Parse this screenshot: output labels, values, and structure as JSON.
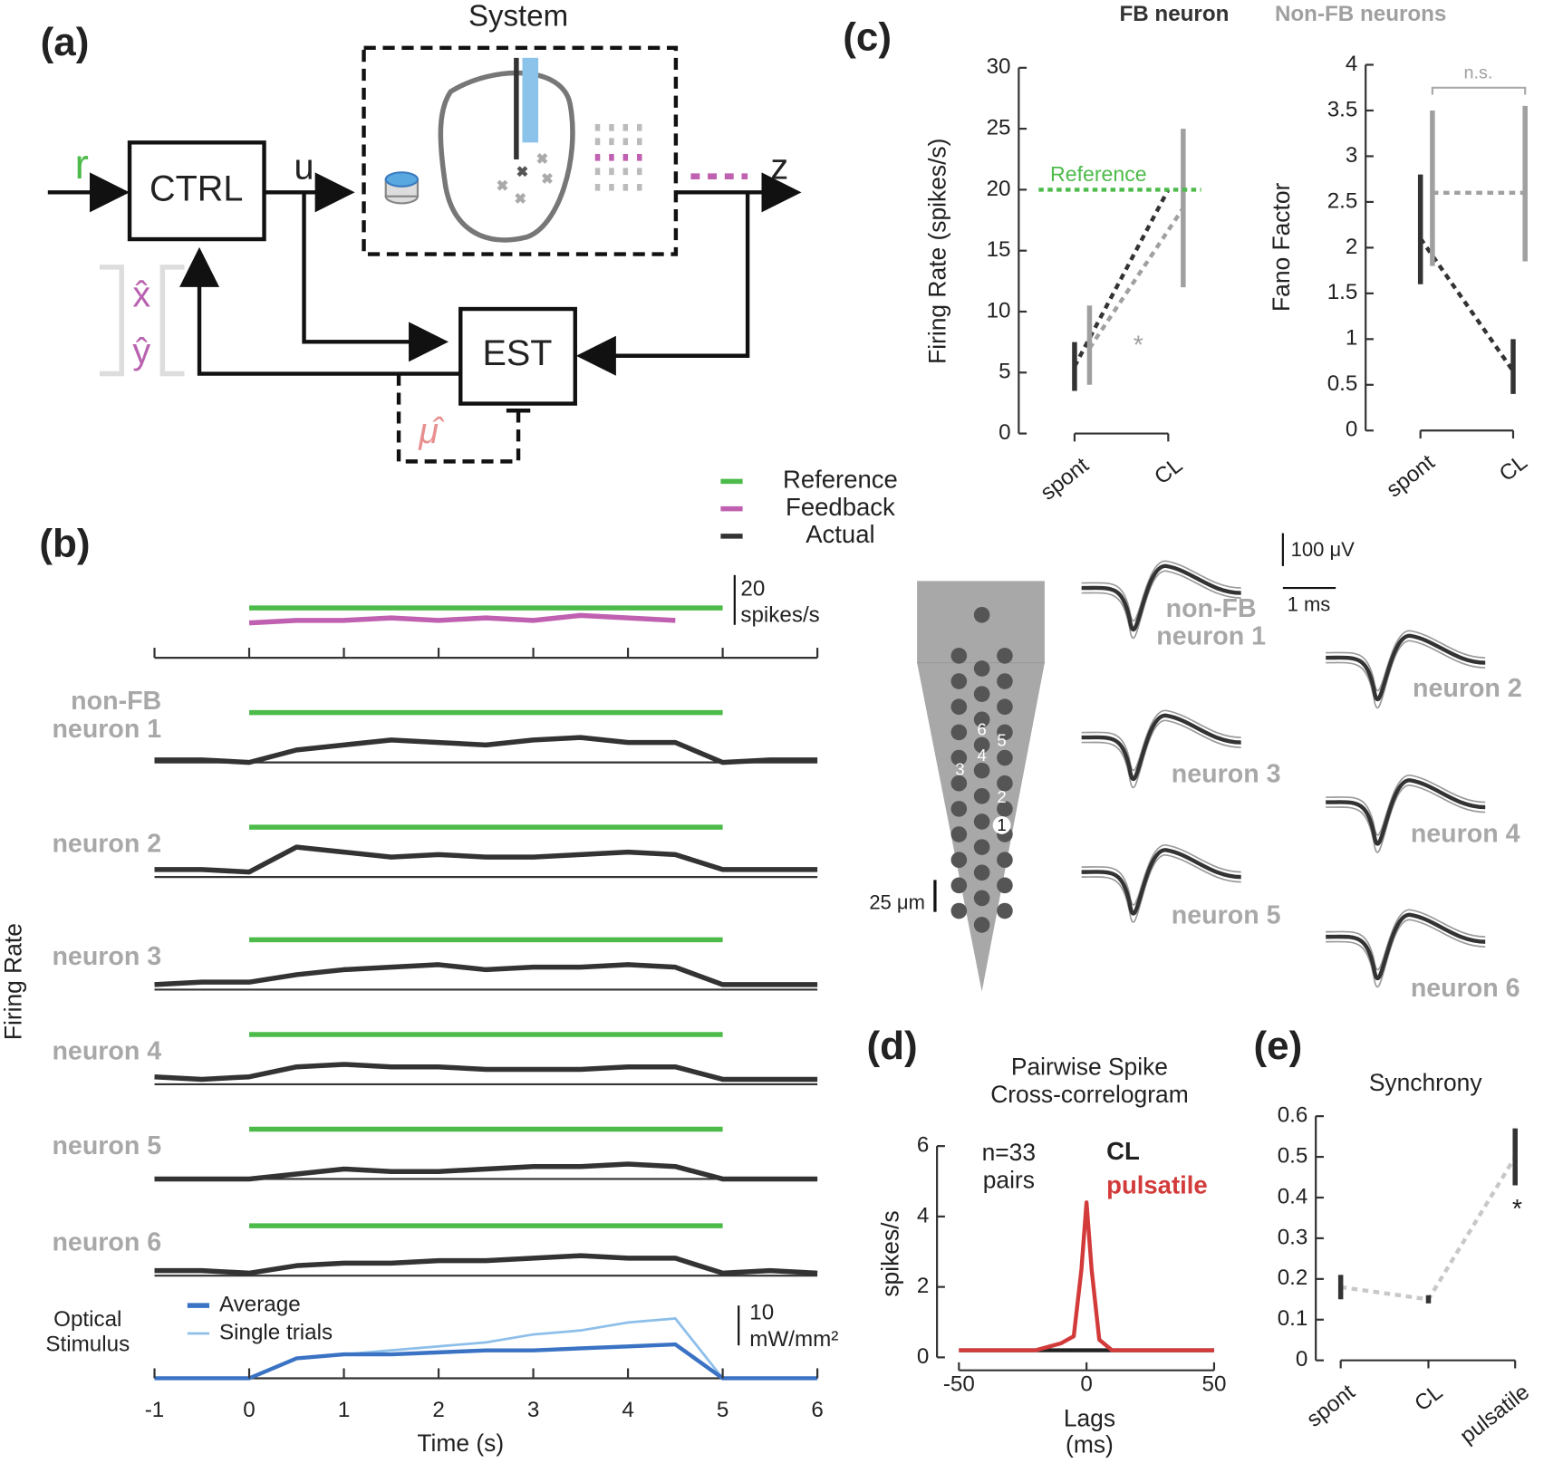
{
  "panel_a": {
    "label": "(a)",
    "title": "System",
    "r": "r",
    "ctrl": "CTRL",
    "u": "u",
    "z": "z",
    "est": "EST",
    "x_hat": "x̂",
    "y_hat": "ŷ",
    "mu_hat": "μ̂"
  },
  "probe": {
    "scale": "25 μm",
    "sites": [
      "1",
      "2",
      "3",
      "4",
      "5",
      "6"
    ],
    "amplitude_scale": "100 μV",
    "time_scale": "1 ms",
    "neurons": [
      [
        "non-FB",
        "neuron 1"
      ],
      [
        "neuron 2"
      ],
      [
        "neuron 3"
      ],
      [
        "neuron 4"
      ],
      [
        "neuron 5"
      ],
      [
        "neuron 6"
      ]
    ]
  },
  "chart_data": [
    {
      "type": "line",
      "label": "(b)",
      "xlabel": "Time (s)",
      "ylabel": "Firing Rate",
      "x": [
        -1,
        -0.5,
        0,
        0.5,
        1,
        1.5,
        2,
        2.5,
        3,
        3.5,
        4,
        4.5,
        5,
        5.5,
        6
      ],
      "xlim": [
        -1,
        6
      ],
      "xticks": [
        -1,
        0,
        1,
        2,
        3,
        4,
        5,
        6
      ],
      "legend": [
        {
          "name": "Reference",
          "color": "#4dbb4a"
        },
        {
          "name": "Feedback",
          "color": "#c060b0"
        },
        {
          "name": "Actual",
          "color": "#333333"
        }
      ],
      "reference": 20,
      "reference_span": [
        0,
        5
      ],
      "scale_bar": {
        "value": 20,
        "label": "20",
        "unit": "spikes/s"
      },
      "rows": [
        {
          "feedback": [
            null,
            null,
            14,
            15,
            15,
            16,
            15,
            16,
            15,
            17,
            16,
            15,
            null,
            null,
            null
          ]
        },
        {
          "label": [
            "non-FB",
            "neuron 1"
          ],
          "actual": [
            1,
            1,
            0,
            5,
            7,
            9,
            8,
            7,
            9,
            10,
            8,
            8,
            0,
            1,
            1
          ]
        },
        {
          "label": [
            "neuron 2"
          ],
          "actual": [
            3,
            3,
            2,
            12,
            10,
            8,
            9,
            8,
            8,
            9,
            10,
            9,
            3,
            3,
            3
          ]
        },
        {
          "label": [
            "neuron 3"
          ],
          "actual": [
            2,
            3,
            3,
            6,
            8,
            9,
            10,
            8,
            9,
            9,
            10,
            9,
            2,
            2,
            2
          ]
        },
        {
          "label": [
            "neuron 4"
          ],
          "actual": [
            3,
            2,
            3,
            7,
            8,
            7,
            7,
            6,
            6,
            6,
            7,
            7,
            2,
            2,
            2
          ]
        },
        {
          "label": [
            "neuron 5"
          ],
          "actual": [
            0,
            0,
            0,
            2,
            4,
            3,
            3,
            4,
            5,
            5,
            6,
            5,
            0,
            0,
            0
          ]
        },
        {
          "label": [
            "neuron 6"
          ],
          "actual": [
            2,
            2,
            1,
            4,
            5,
            5,
            6,
            6,
            7,
            8,
            7,
            7,
            1,
            2,
            1
          ]
        }
      ],
      "stimulus": {
        "label": [
          "Optical",
          "Stimulus"
        ],
        "scale_bar": {
          "value": 10,
          "label": "10",
          "unit": "mW/mm²"
        },
        "series": [
          {
            "name": "Average",
            "color": "#3a72c4",
            "values": [
              0,
              0,
              0,
              5,
              6,
              6,
              6.5,
              7,
              7,
              7.5,
              8,
              8.5,
              0,
              0,
              0
            ]
          },
          {
            "name": "Single trials",
            "color": "#8dbfea",
            "values": [
              0,
              0,
              0,
              5,
              6,
              7,
              8,
              9,
              11,
              12,
              14,
              15,
              0,
              0,
              0
            ]
          }
        ]
      }
    },
    {
      "type": "errorbar",
      "label": "(c)",
      "ylabel": "Firing Rate (spikes/s)",
      "categories": [
        "spont",
        "CL"
      ],
      "ylim": [
        0,
        30
      ],
      "yticks": [
        0,
        5,
        10,
        15,
        20,
        25,
        30
      ],
      "reference": 20,
      "reference_label": "Reference",
      "reference_color": "#4dbb4a",
      "annotation": "*",
      "series": [
        {
          "name": "FB neuron",
          "color": "#333333",
          "values": [
            5.5,
            20
          ],
          "lower": [
            3.5,
            null
          ],
          "upper": [
            7.5,
            null
          ]
        },
        {
          "name": "Non-FB neurons",
          "color": "#a0a0a0",
          "values": [
            7,
            18.5
          ],
          "lower": [
            4,
            12
          ],
          "upper": [
            10.5,
            25
          ]
        }
      ]
    },
    {
      "type": "errorbar",
      "ylabel": "Fano Factor",
      "categories": [
        "spont",
        "CL"
      ],
      "ylim": [
        0,
        4
      ],
      "yticks": [
        0,
        0.5,
        1,
        1.5,
        2,
        2.5,
        3,
        3.5,
        4
      ],
      "annotation": "n.s.",
      "series": [
        {
          "color": "#333333",
          "values": [
            2.1,
            0.65
          ],
          "lower": [
            1.6,
            0.4
          ],
          "upper": [
            2.8,
            1.0
          ]
        },
        {
          "color": "#a0a0a0",
          "values": [
            2.6,
            2.6
          ],
          "lower": [
            1.8,
            1.85
          ],
          "upper": [
            3.5,
            3.55
          ]
        }
      ]
    },
    {
      "type": "line",
      "label": "(d)",
      "title_lines": [
        "Pairwise Spike",
        "Cross-correlogram"
      ],
      "xlabel_lines": [
        "Lags",
        "(ms)"
      ],
      "ylabel": "spikes/s",
      "annotation_lines": [
        "n=33",
        "pairs"
      ],
      "x": [
        -50,
        -40,
        -30,
        -20,
        -10,
        -5,
        -2,
        0,
        2,
        5,
        10,
        20,
        30,
        40,
        50
      ],
      "xlim": [
        -50,
        50
      ],
      "xticks": [
        -50,
        0,
        50
      ],
      "ylim": [
        0,
        6
      ],
      "yticks": [
        0,
        2,
        4,
        6
      ],
      "series": [
        {
          "name": "CL",
          "color": "#222222",
          "values": [
            0.2,
            0.2,
            0.2,
            0.2,
            0.2,
            0.2,
            0.2,
            0.2,
            0.2,
            0.2,
            0.2,
            0.2,
            0.2,
            0.2,
            0.2
          ]
        },
        {
          "name": "pulsatile",
          "color": "#d33a3a",
          "values": [
            0.2,
            0.2,
            0.2,
            0.2,
            0.4,
            0.6,
            2.5,
            4.4,
            2.5,
            0.5,
            0.2,
            0.2,
            0.2,
            0.2,
            0.2
          ]
        }
      ]
    },
    {
      "type": "errorbar",
      "label": "(e)",
      "title": "Synchrony",
      "categories": [
        "spont",
        "CL",
        "pulsatile"
      ],
      "ylim": [
        0,
        0.6
      ],
      "yticks": [
        0,
        0.1,
        0.2,
        0.3,
        0.4,
        0.5,
        0.6
      ],
      "annotation": "*",
      "series": [
        {
          "color": "#333333",
          "line_color": "#c8c8c8",
          "values": [
            0.18,
            0.15,
            0.5
          ],
          "lower": [
            0.15,
            0.14,
            0.43
          ],
          "upper": [
            0.21,
            0.16,
            0.57
          ]
        }
      ]
    }
  ]
}
